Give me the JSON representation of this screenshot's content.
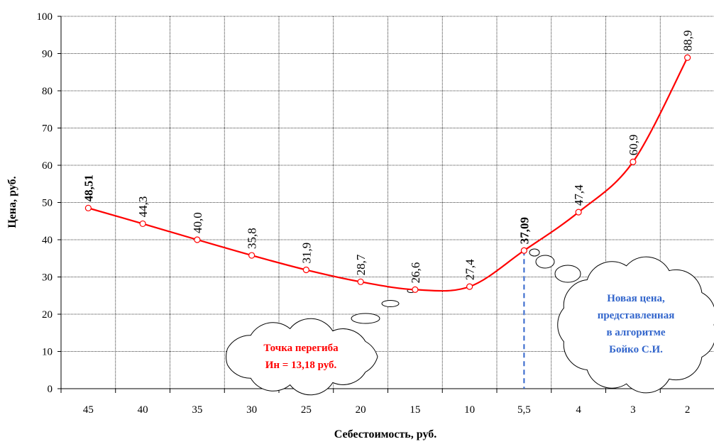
{
  "chart_data": {
    "type": "line",
    "xlabel": "Себестоимость, руб.",
    "ylabel": "Цена, руб.",
    "ylim": [
      0,
      100
    ],
    "yticks": [
      "0",
      "10",
      "20",
      "30",
      "40",
      "50",
      "60",
      "70",
      "80",
      "90",
      "100"
    ],
    "categories": [
      "45",
      "40",
      "35",
      "30",
      "25",
      "20",
      "15",
      "10",
      "5,5",
      "4",
      "3",
      "2"
    ],
    "values": [
      48.51,
      44.3,
      40.0,
      35.8,
      31.9,
      28.7,
      26.6,
      27.4,
      37.09,
      47.4,
      60.9,
      88.9
    ],
    "data_labels": [
      "48,51",
      "44,3",
      "40,0",
      "35,8",
      "31,9",
      "28,7",
      "26,6",
      "27,4",
      "37,09",
      "47,4",
      "60,9",
      "88,9"
    ],
    "grid": true,
    "colors": {
      "line": "#ff0000",
      "highlight": "#3366cc",
      "grid": "#000000"
    },
    "annotations": [
      {
        "id": "inflection",
        "lines": [
          "Точка перегиба",
          "Ин = 13,18 руб."
        ],
        "color": "#ff0000"
      },
      {
        "id": "new-price",
        "lines": [
          "Новая цена,",
          "представленная",
          "в алгоритме",
          "Бойко С.И."
        ],
        "color": "#3366cc"
      }
    ]
  }
}
